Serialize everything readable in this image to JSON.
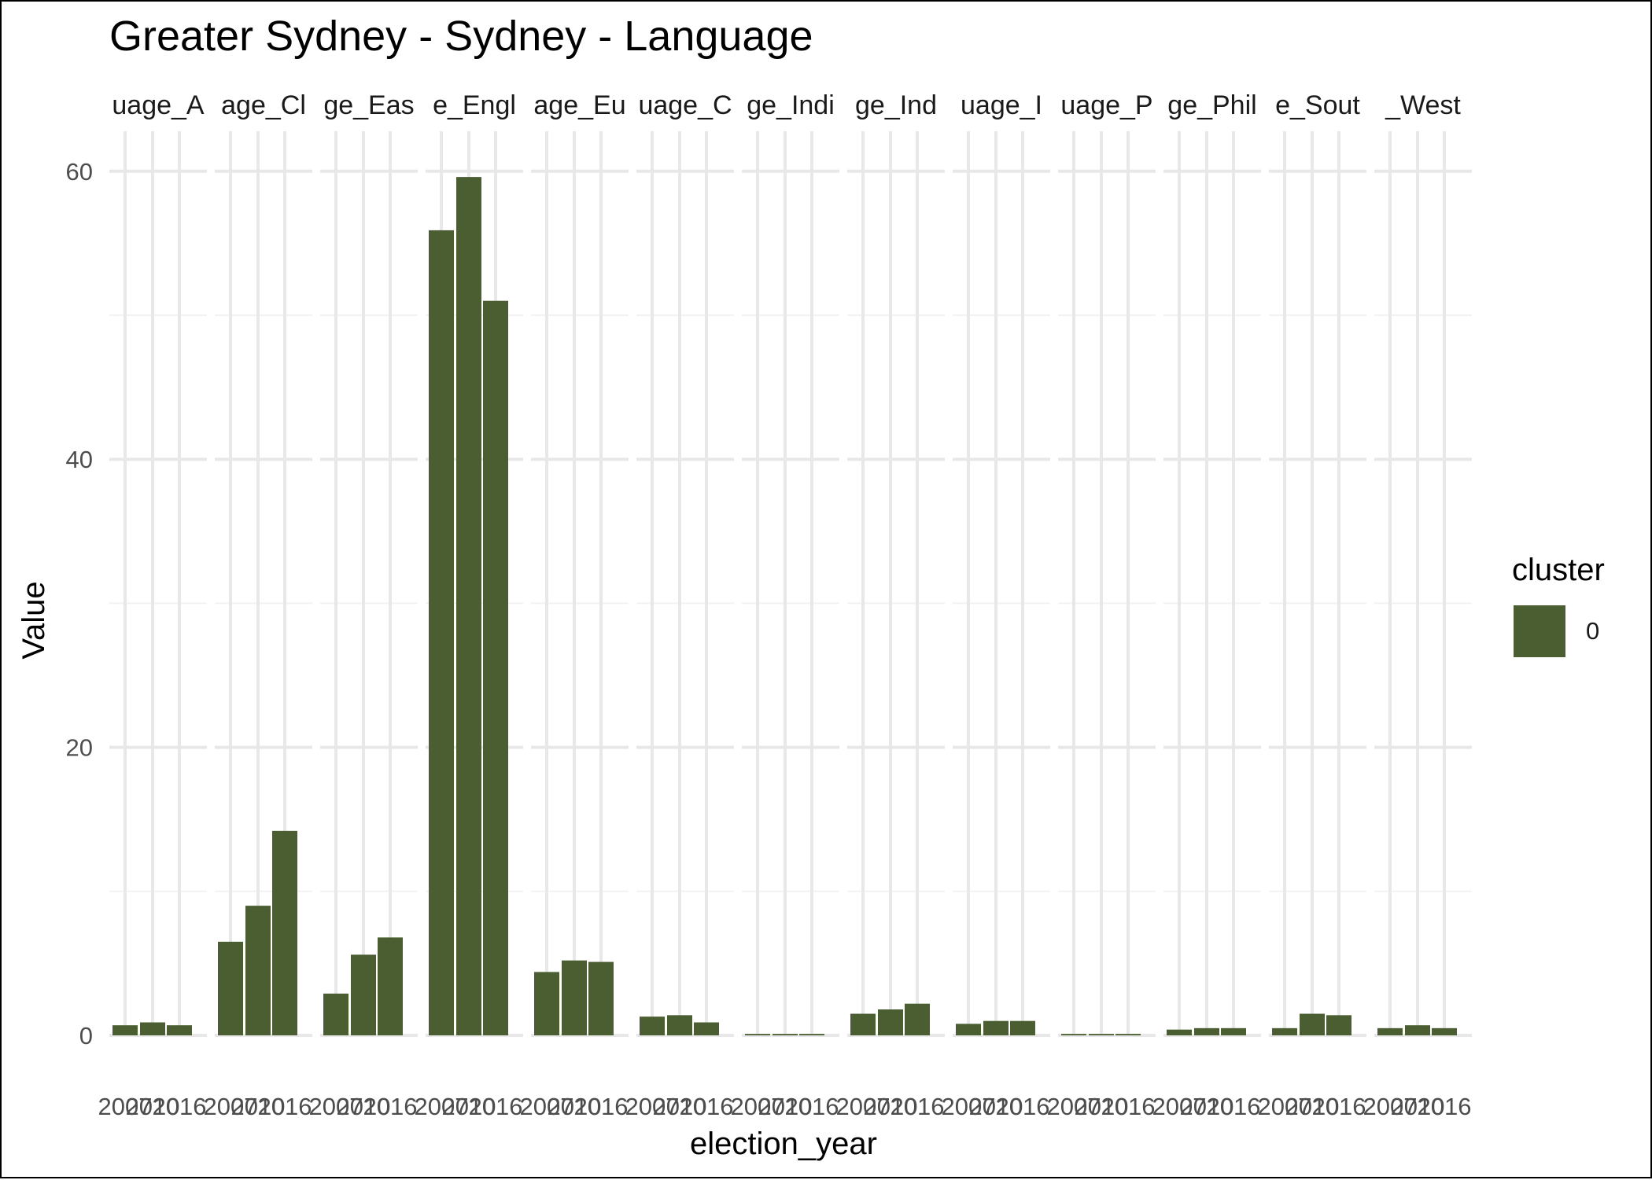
{
  "chart_data": {
    "type": "bar",
    "title": "Greater Sydney - Sydney - Language",
    "xlabel": "election_year",
    "ylabel": "Value",
    "ylim": [
      0,
      62.5
    ],
    "yticks": [
      0,
      20,
      40,
      60
    ],
    "categories": [
      "2007",
      "2010",
      "2016"
    ],
    "x_tick_labels": [
      "2007",
      "2010",
      "2016"
    ],
    "grid": true,
    "legend": {
      "title": "cluster",
      "position": "right",
      "items": [
        {
          "label": "0",
          "color": "#4a5e32"
        }
      ]
    },
    "bar_color": "#4a5e32",
    "facets": [
      {
        "strip": "uage_A",
        "values": [
          0.7,
          0.9,
          0.7
        ]
      },
      {
        "strip": "age_Cl",
        "values": [
          6.5,
          9.0,
          14.2
        ]
      },
      {
        "strip": "ge_Eas",
        "values": [
          2.9,
          5.6,
          6.8
        ]
      },
      {
        "strip": "e_Engl",
        "values": [
          55.9,
          59.6,
          51.0
        ]
      },
      {
        "strip": "age_Eu",
        "values": [
          4.4,
          5.2,
          5.1
        ]
      },
      {
        "strip": "uage_C",
        "values": [
          1.3,
          1.4,
          0.9
        ]
      },
      {
        "strip": "ge_Indi",
        "values": [
          0.1,
          0.1,
          0.1
        ]
      },
      {
        "strip": "ge_Ind",
        "values": [
          1.5,
          1.8,
          2.2
        ]
      },
      {
        "strip": "uage_I",
        "values": [
          0.8,
          1.0,
          1.0
        ]
      },
      {
        "strip": "uage_P",
        "values": [
          0.1,
          0.1,
          0.1
        ]
      },
      {
        "strip": "ge_Phil",
        "values": [
          0.4,
          0.5,
          0.5
        ]
      },
      {
        "strip": "e_Sout",
        "values": [
          0.5,
          1.5,
          1.4
        ]
      },
      {
        "strip": "_West",
        "values": [
          0.5,
          0.7,
          0.5
        ]
      }
    ]
  }
}
